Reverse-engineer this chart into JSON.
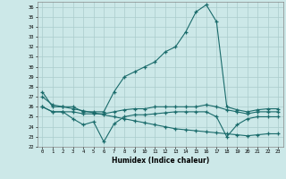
{
  "xlabel": "Humidex (Indice chaleur)",
  "background_color": "#cce8e8",
  "grid_color": "#aacccc",
  "line_color": "#1a6b6b",
  "xlim": [
    -0.5,
    23.5
  ],
  "ylim": [
    22,
    36.5
  ],
  "x": [
    0,
    1,
    2,
    3,
    4,
    5,
    6,
    7,
    8,
    9,
    10,
    11,
    12,
    13,
    14,
    15,
    16,
    17,
    18,
    19,
    20,
    21,
    22,
    23
  ],
  "line_max": [
    27.5,
    26.0,
    26.0,
    26.0,
    25.5,
    25.5,
    25.5,
    27.5,
    29.0,
    29.5,
    30.0,
    30.5,
    31.5,
    32.0,
    33.5,
    35.5,
    36.2,
    34.5,
    26.0,
    25.7,
    25.5,
    25.7,
    25.8,
    25.8
  ],
  "line_upper": [
    26.0,
    25.5,
    25.5,
    25.5,
    25.3,
    25.3,
    25.3,
    25.5,
    25.7,
    25.8,
    25.8,
    26.0,
    26.0,
    26.0,
    26.0,
    26.0,
    26.2,
    26.0,
    25.7,
    25.5,
    25.3,
    25.5,
    25.5,
    25.5
  ],
  "line_lower": [
    26.0,
    25.5,
    25.5,
    24.8,
    24.2,
    24.5,
    22.5,
    24.3,
    25.0,
    25.2,
    25.2,
    25.3,
    25.4,
    25.5,
    25.5,
    25.5,
    25.5,
    25.0,
    23.0,
    24.2,
    24.8,
    25.0,
    25.0,
    25.0
  ],
  "line_trend": [
    27.0,
    26.2,
    26.0,
    25.8,
    25.6,
    25.4,
    25.2,
    25.0,
    24.8,
    24.6,
    24.4,
    24.2,
    24.0,
    23.8,
    23.7,
    23.6,
    23.5,
    23.4,
    23.3,
    23.2,
    23.1,
    23.2,
    23.3,
    23.3
  ]
}
